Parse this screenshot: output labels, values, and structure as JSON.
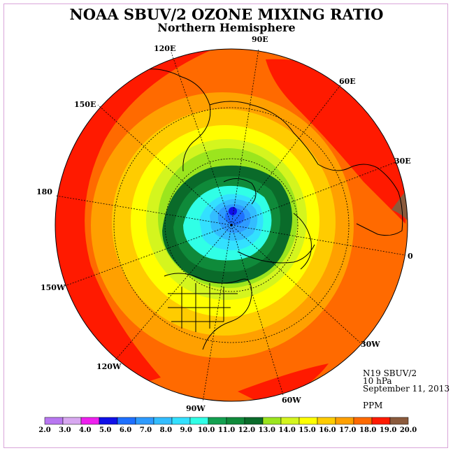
{
  "title": "NOAA SBUV/2 OZONE MIXING RATIO",
  "subtitle": "Northern Hemisphere",
  "longitude_labels": [
    "90E",
    "60E",
    "30E",
    "0",
    "30W",
    "60W",
    "90W",
    "120W",
    "150W",
    "180",
    "150E",
    "120E"
  ],
  "info": {
    "instrument": "N19 SBUV/2",
    "level": "10 hPa",
    "date": "September 11, 2013",
    "units": "PPM"
  },
  "colorbar": {
    "labels": [
      "2.0",
      "3.0",
      "4.0",
      "5.0",
      "6.0",
      "7.0",
      "8.0",
      "9.0",
      "10.0",
      "11.0",
      "12.0",
      "13.0",
      "14.0",
      "15.0",
      "16.0",
      "17.0",
      "18.0",
      "19.0",
      "20.0"
    ],
    "colors": [
      "#b877f0",
      "#d8a8f0",
      "#ee20ee",
      "#1010e8",
      "#1e70ff",
      "#2e9bff",
      "#33bdff",
      "#33e0ff",
      "#30ffe6",
      "#13a050",
      "#0f8a3a",
      "#0a6b2a",
      "#9be51e",
      "#d4f51e",
      "#ffff00",
      "#ffcc00",
      "#ffa000",
      "#ff6a00",
      "#ff1a00",
      "#8b5a3c"
    ]
  },
  "palette": {
    "red": "#ff1a00",
    "orange_red": "#ff6a00",
    "orange": "#ffa000",
    "gold": "#ffcc00",
    "yellow": "#ffff00",
    "yellow_green": "#d4f51e",
    "light_green": "#9be51e",
    "dark_green": "#0a6b2a",
    "mid_green": "#13a050",
    "cyan": "#30ffe6",
    "light_cyan": "#33e0ff",
    "sky_blue": "#33bdff",
    "blue": "#2e9bff",
    "deep_blue": "#1e70ff",
    "core_blue": "#1010e8"
  }
}
